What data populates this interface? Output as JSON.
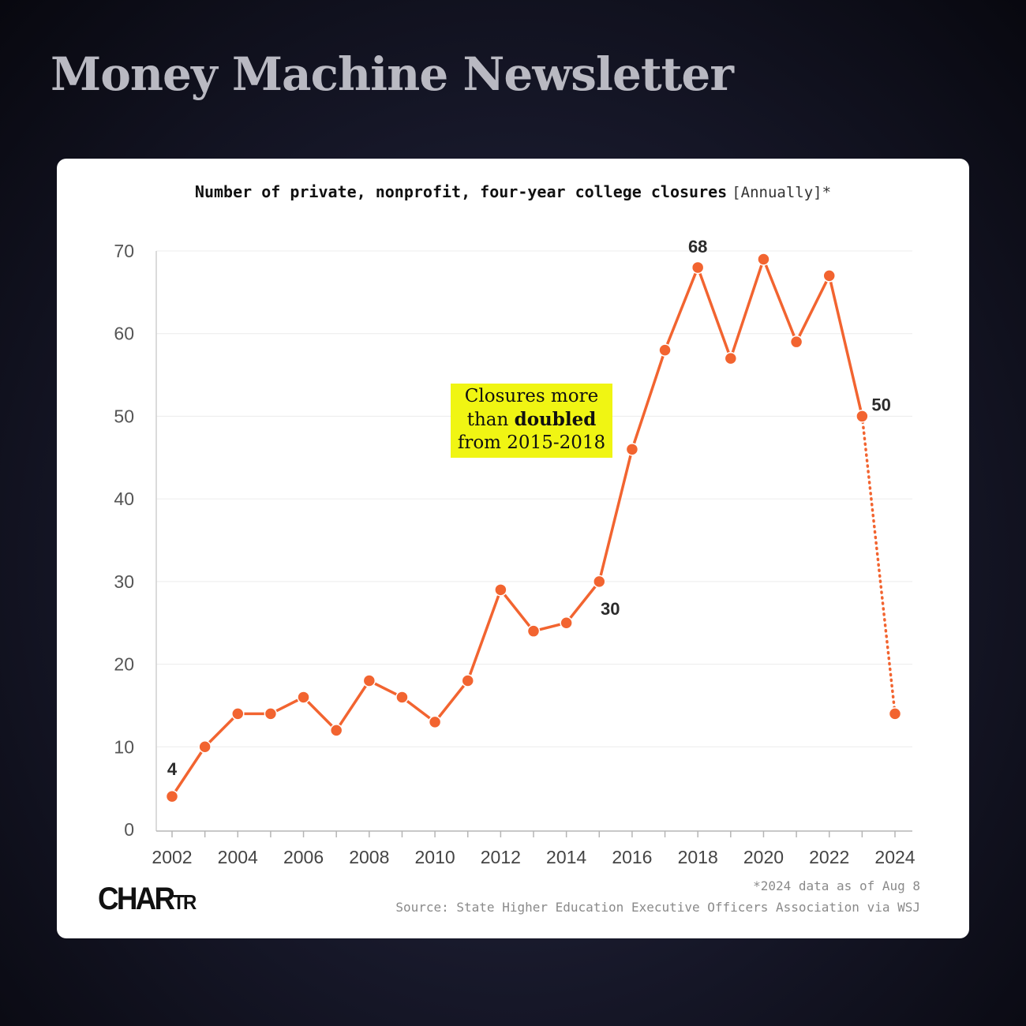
{
  "header": {
    "title": "Money Machine Newsletter"
  },
  "chart_title": {
    "main": "Number of private, nonprofit, four-year college closures",
    "sub": "[Annually]*"
  },
  "callout": {
    "pre": "Closures more",
    "mid_pre": "than ",
    "bold": "doubled",
    "post": "from 2015-2018"
  },
  "footnote": {
    "note": "*2024 data as of Aug 8",
    "source": "Source: State Higher Education Executive Officers Association via WSJ"
  },
  "logo": {
    "big": "CHAR",
    "small": "TR"
  },
  "colors": {
    "line": "#f26430",
    "callout_bg": "#f0f513",
    "text": "#2b2b2b"
  },
  "chart_data": {
    "type": "line",
    "x": [
      2002,
      2003,
      2004,
      2005,
      2006,
      2007,
      2008,
      2009,
      2010,
      2011,
      2012,
      2013,
      2014,
      2015,
      2016,
      2017,
      2018,
      2019,
      2020,
      2021,
      2022,
      2023,
      2024
    ],
    "values": [
      4,
      10,
      14,
      14,
      16,
      12,
      18,
      16,
      13,
      18,
      29,
      24,
      25,
      30,
      46,
      58,
      68,
      57,
      69,
      59,
      67,
      50,
      14
    ],
    "partial_last_point": true,
    "ylim": [
      0,
      70
    ],
    "yticks": [
      0,
      10,
      20,
      30,
      40,
      50,
      60,
      70
    ],
    "xticks": [
      "2002",
      "2004",
      "2006",
      "2008",
      "2010",
      "2012",
      "2014",
      "2016",
      "2018",
      "2020",
      "2022",
      "2024"
    ],
    "data_labels": [
      {
        "x": 2002,
        "text": "4"
      },
      {
        "x": 2015,
        "text": "30"
      },
      {
        "x": 2018,
        "text": "68"
      },
      {
        "x": 2023,
        "text": "50"
      }
    ],
    "grid": true
  }
}
